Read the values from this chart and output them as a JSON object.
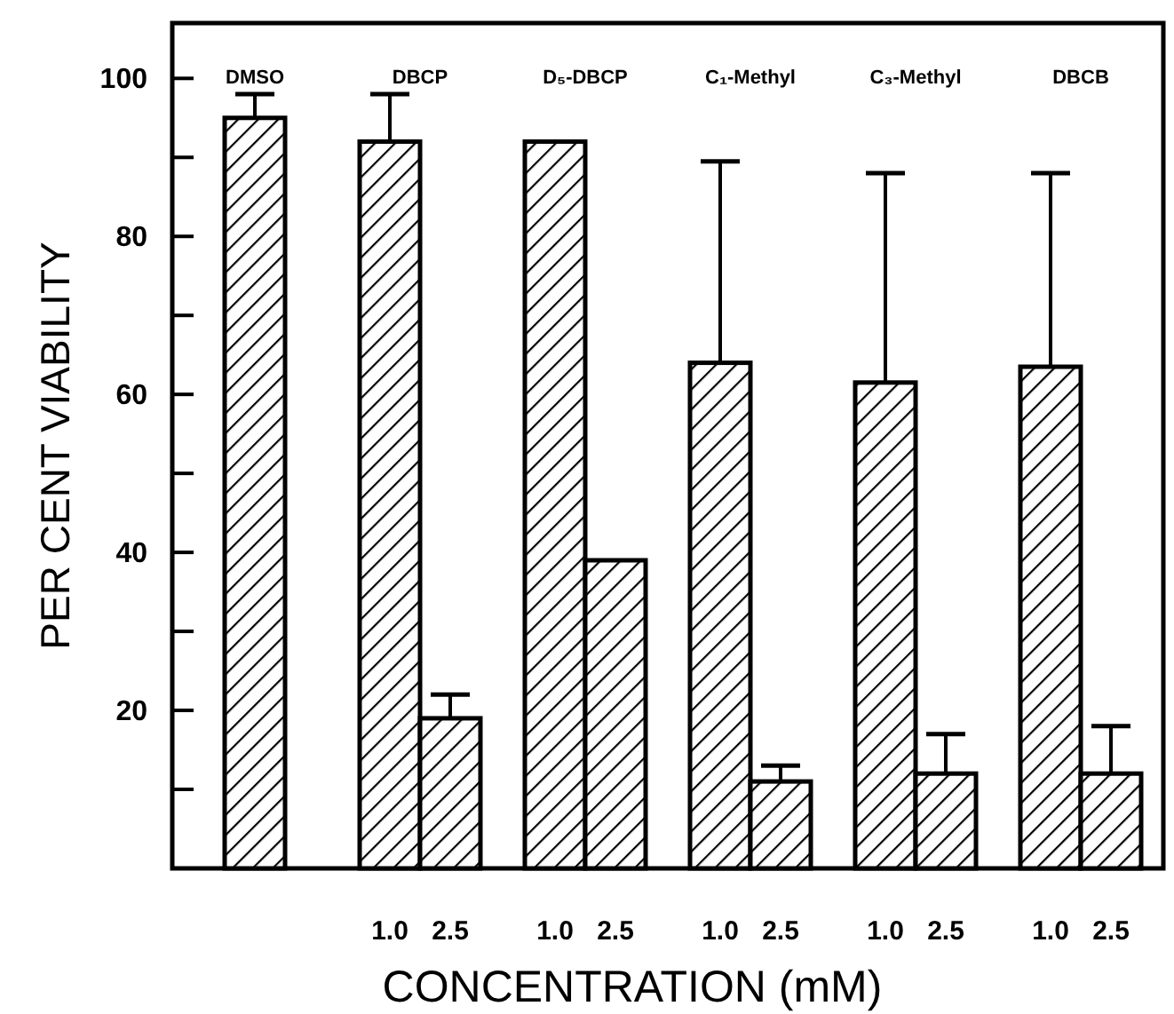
{
  "chart_data": {
    "type": "bar",
    "xlabel": "CONCENTRATION (mM)",
    "ylabel": "PER CENT VIABILITY",
    "categories": [
      "DMSO",
      "DBCP",
      "D₅-DBCP",
      "C₁-Methyl",
      "C₃-Methyl",
      "DBCB"
    ],
    "series": [
      {
        "color": "#000000",
        "values": [
          95,
          null,
          null,
          null,
          null,
          null
        ],
        "errors": [
          [
            95,
            98
          ],
          null,
          null,
          null,
          null,
          null
        ]
      },
      {
        "name": "1.0",
        "color": "#000000",
        "values": [
          null,
          92,
          92,
          64,
          61.5,
          63.5
        ],
        "errors": [
          null,
          [
            92,
            98
          ],
          null,
          [
            64,
            89.5
          ],
          [
            61.5,
            88
          ],
          [
            63.5,
            88
          ]
        ]
      },
      {
        "name": "2.5",
        "color": "#000000",
        "values": [
          null,
          19,
          39,
          11,
          12,
          12
        ],
        "errors": [
          null,
          [
            19,
            22
          ],
          null,
          [
            11,
            13
          ],
          [
            12,
            17
          ],
          [
            12,
            18
          ]
        ]
      }
    ],
    "ylim": [
      0,
      107
    ],
    "yticks": [
      {
        "value": 10,
        "label": null
      },
      20,
      {
        "value": 30,
        "label": null
      },
      40,
      {
        "value": 50,
        "label": null
      },
      60,
      {
        "value": 70,
        "label": null
      },
      80,
      {
        "value": 90,
        "label": null
      },
      100
    ],
    "grid": false
  }
}
